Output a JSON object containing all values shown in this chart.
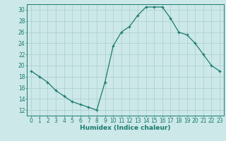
{
  "x": [
    0,
    1,
    2,
    3,
    4,
    5,
    6,
    7,
    8,
    9,
    10,
    11,
    12,
    13,
    14,
    15,
    16,
    17,
    18,
    19,
    20,
    21,
    22,
    23
  ],
  "y": [
    19,
    18,
    17,
    15.5,
    14.5,
    13.5,
    13,
    12.5,
    12,
    17,
    23.5,
    26,
    27,
    29,
    30.5,
    30.5,
    30.5,
    28.5,
    26,
    25.5,
    24,
    22,
    20,
    19
  ],
  "line_color": "#1a7a6e",
  "marker_color": "#1a7a6e",
  "bg_color": "#cce8e8",
  "grid_color": "#aacece",
  "xlabel": "Humidex (Indice chaleur)",
  "xlim": [
    -0.5,
    23.5
  ],
  "ylim": [
    11,
    31
  ],
  "yticks": [
    12,
    14,
    16,
    18,
    20,
    22,
    24,
    26,
    28,
    30
  ],
  "xticks": [
    0,
    1,
    2,
    3,
    4,
    5,
    6,
    7,
    8,
    9,
    10,
    11,
    12,
    13,
    14,
    15,
    16,
    17,
    18,
    19,
    20,
    21,
    22,
    23
  ],
  "xlabel_fontsize": 6.5,
  "tick_fontsize": 5.5
}
